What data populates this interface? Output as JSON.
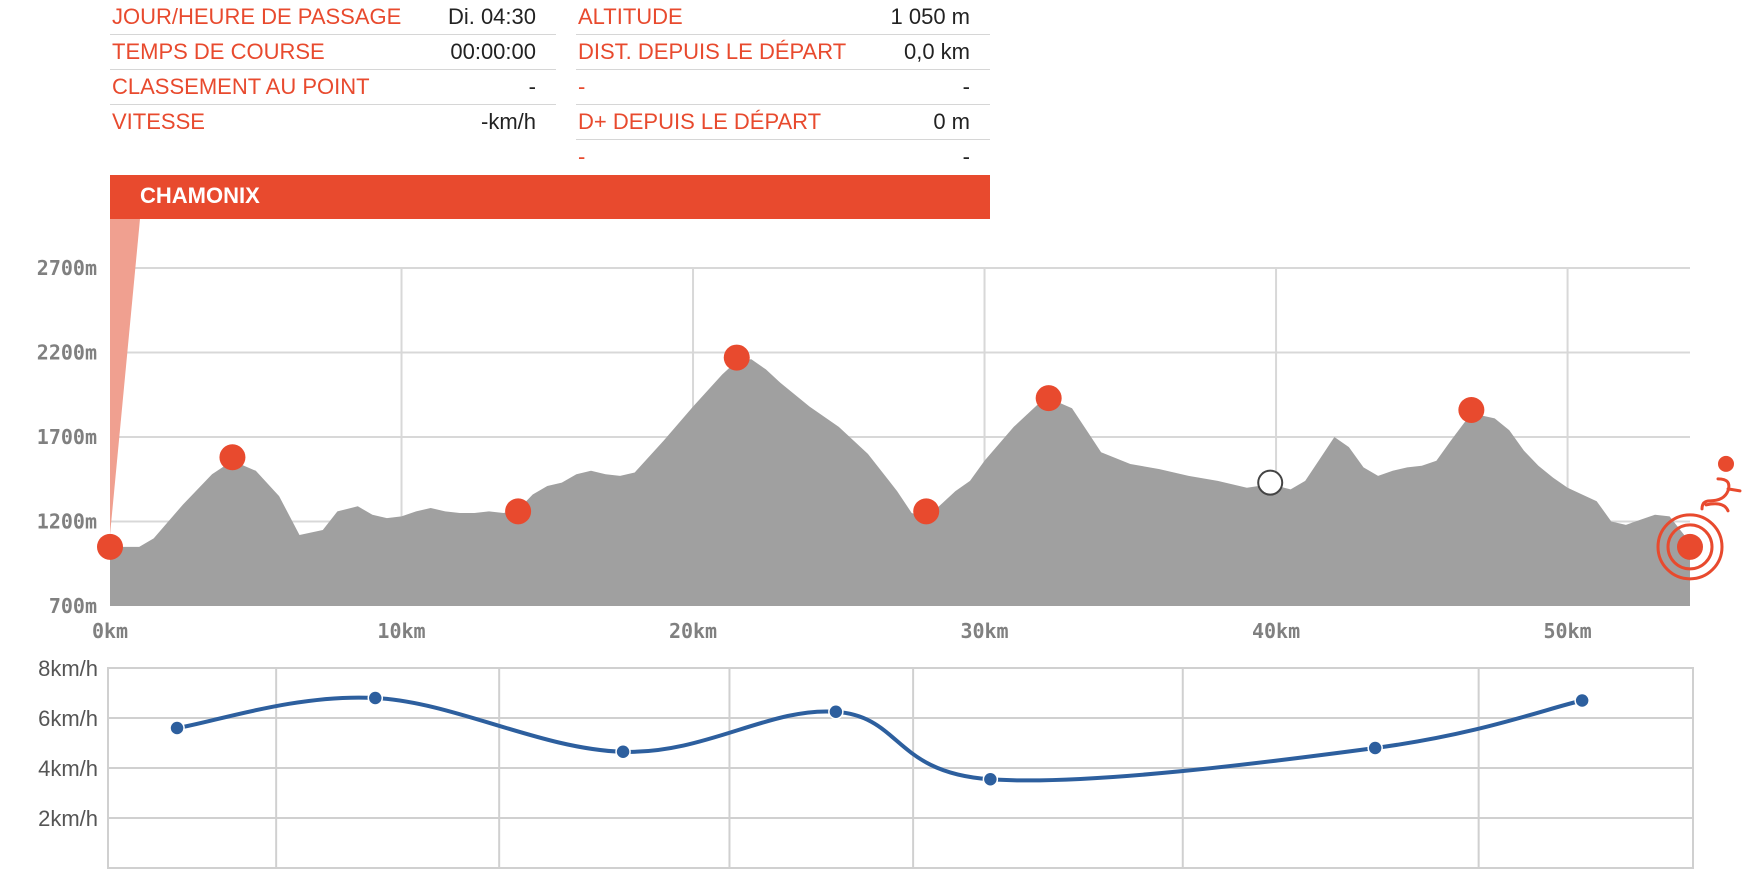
{
  "info": {
    "left": [
      {
        "label": "JOUR/HEURE DE PASSAGE",
        "value": "Di. 04:30"
      },
      {
        "label": "TEMPS DE COURSE",
        "value": "00:00:00"
      },
      {
        "label": "CLASSEMENT AU POINT",
        "value": "-"
      },
      {
        "label": "VITESSE",
        "value": "-km/h"
      }
    ],
    "right": [
      {
        "label": "ALTITUDE",
        "value": "1 050 m"
      },
      {
        "label": "DIST. DEPUIS LE DÉPART",
        "value": "0,0 km"
      },
      {
        "label": "-",
        "value": "-"
      },
      {
        "label": "D+ DEPUIS LE DÉPART",
        "value": "0 m"
      },
      {
        "label": "-",
        "value": "-"
      }
    ]
  },
  "banner": {
    "label": "CHAMONIX"
  },
  "colors": {
    "accent": "#e84a2e",
    "profile": "#a0a0a0",
    "speed": "#2d5f9e"
  },
  "chart_data": [
    {
      "type": "area",
      "y_ticks": [
        "700m",
        "1200m",
        "1700m",
        "2200m",
        "2700m"
      ],
      "x_ticks": [
        "0km",
        "10km",
        "20km",
        "30km",
        "40km",
        "50km"
      ],
      "ylim": [
        700,
        2700
      ],
      "xlim": [
        0,
        54.2
      ],
      "series": [
        {
          "x": [
            0,
            1,
            1.5,
            2.5,
            3.5,
            4.2,
            5,
            5.8,
            6.5,
            7.3,
            7.8,
            8.5,
            9,
            9.5,
            10,
            10.5,
            11,
            11.5,
            12,
            12.5,
            13,
            13.5,
            14,
            14.5,
            15,
            15.5,
            16,
            16.5,
            17,
            17.5,
            18,
            19,
            20,
            21,
            21.5,
            22,
            22.5,
            23,
            24,
            25,
            26,
            27,
            27.5,
            28,
            28.5,
            29,
            29.5,
            30,
            31,
            32,
            32.2,
            33,
            33.5,
            34,
            35,
            36,
            37,
            38,
            39,
            39.8,
            40.5,
            41,
            41.5,
            42,
            42.5,
            43,
            43.5,
            44,
            44.5,
            45,
            45.5,
            46,
            46.7,
            47.5,
            48,
            48.5,
            49,
            49.5,
            50,
            50.5,
            51,
            51.5,
            52,
            52.5,
            53,
            53.5,
            54,
            54.2
          ],
          "y": [
            1050,
            1050,
            1100,
            1300,
            1480,
            1560,
            1500,
            1350,
            1120,
            1150,
            1260,
            1290,
            1240,
            1220,
            1230,
            1260,
            1280,
            1260,
            1250,
            1250,
            1260,
            1250,
            1270,
            1360,
            1410,
            1430,
            1480,
            1500,
            1480,
            1470,
            1490,
            1680,
            1880,
            2070,
            2150,
            2160,
            2100,
            2020,
            1880,
            1760,
            1600,
            1380,
            1250,
            1220,
            1300,
            1380,
            1440,
            1560,
            1760,
            1920,
            1930,
            1870,
            1740,
            1610,
            1540,
            1510,
            1470,
            1440,
            1400,
            1420,
            1390,
            1440,
            1570,
            1700,
            1640,
            1520,
            1470,
            1500,
            1520,
            1530,
            1560,
            1680,
            1840,
            1810,
            1740,
            1620,
            1530,
            1460,
            1400,
            1360,
            1320,
            1200,
            1180,
            1210,
            1240,
            1230,
            1120,
            1050
          ]
        }
      ],
      "checkpoints": [
        {
          "x": 0,
          "y": 1050
        },
        {
          "x": 4.2,
          "y": 1580
        },
        {
          "x": 14,
          "y": 1260
        },
        {
          "x": 21.5,
          "y": 2170
        },
        {
          "x": 28,
          "y": 1260
        },
        {
          "x": 32.2,
          "y": 1930
        },
        {
          "x": 46.7,
          "y": 1860
        },
        {
          "x": 54.2,
          "y": 1050
        }
      ],
      "current_position": {
        "x": 39.8,
        "y": 1430
      }
    },
    {
      "type": "line",
      "y_ticks": [
        "2km/h",
        "4km/h",
        "6km/h",
        "8km/h"
      ],
      "ylim": [
        0,
        8
      ],
      "series": [
        {
          "x": [
            2.3,
            9.1,
            17.6,
            24.9,
            30.2,
            43.4,
            50.5
          ],
          "y": [
            5.6,
            6.8,
            4.65,
            6.25,
            3.55,
            4.8,
            6.7
          ]
        }
      ]
    }
  ]
}
